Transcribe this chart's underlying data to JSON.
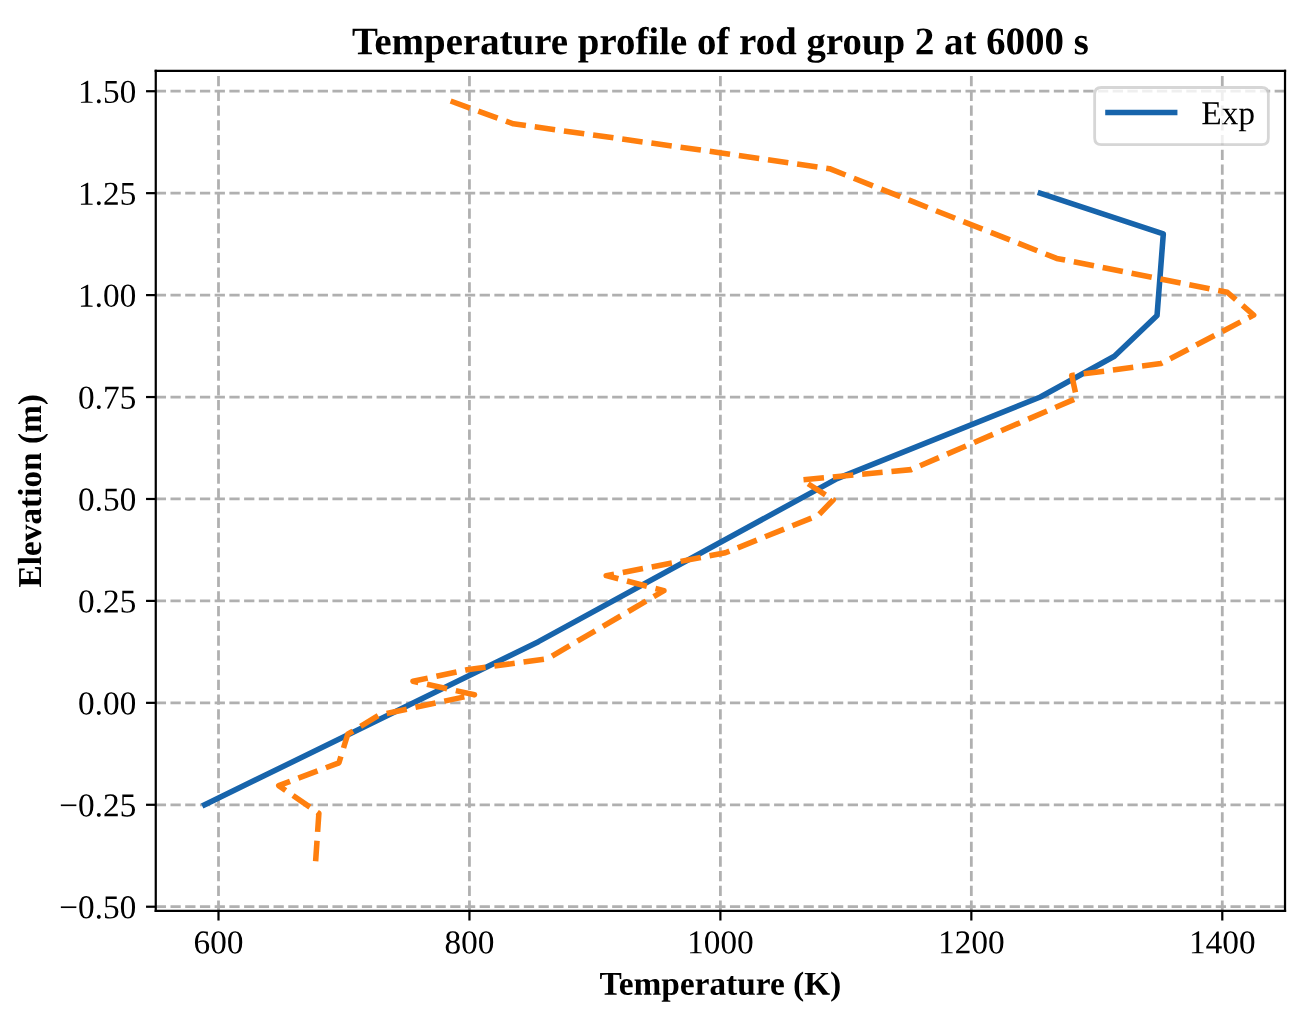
{
  "chart_data": {
    "type": "line",
    "title": "Temperature profile of rod group 2 at 6000 s",
    "xlabel": "Temperature (K)",
    "ylabel": "Elevation (m)",
    "xlim": [
      550,
      1450
    ],
    "xticks": [
      600,
      800,
      1000,
      1200,
      1400
    ],
    "ylim": [
      -0.51,
      1.55
    ],
    "yticks": [
      {
        "value": -0.5,
        "label": "−0.50"
      },
      {
        "value": -0.25,
        "label": "−0.25"
      },
      {
        "value": 0,
        "label": "0.00"
      },
      {
        "value": 0.25,
        "label": "0.25"
      },
      {
        "value": 0.5,
        "label": "0.50"
      },
      {
        "value": 0.75,
        "label": "0.75"
      },
      {
        "value": 1.0,
        "label": "1.00"
      },
      {
        "value": 1.25,
        "label": "1.25"
      },
      {
        "value": 1.5,
        "label": "1.50"
      }
    ],
    "grid": true,
    "legend": "top right",
    "series": [
      {
        "name": "Exp",
        "color": "#1764ab",
        "line_style": "solid",
        "x": [
          589,
          855,
          1093,
          1255,
          1314,
          1348,
          1353,
          1255
        ],
        "values": [
          -0.25,
          0.15,
          0.55,
          0.75,
          0.85,
          0.95,
          1.15,
          1.25
        ]
      },
      {
        "color": "#ff7f0e",
        "line_style": "dashed",
        "x": [
          785,
          835,
          998,
          1087,
          1268,
          1404,
          1425,
          1351,
          1280,
          1284,
          1152,
          1065,
          1090,
          1078,
          1004,
          909,
          955,
          862,
          798,
          755,
          804,
          728,
          703,
          696,
          648,
          680,
          677
        ],
        "values": [
          1.476,
          1.42,
          1.35,
          1.31,
          1.09,
          1.007,
          0.951,
          0.832,
          0.803,
          0.747,
          0.572,
          0.547,
          0.498,
          0.46,
          0.368,
          0.312,
          0.275,
          0.108,
          0.081,
          0.053,
          0.02,
          -0.03,
          -0.077,
          -0.147,
          -0.203,
          -0.271,
          -0.407
        ]
      }
    ]
  }
}
